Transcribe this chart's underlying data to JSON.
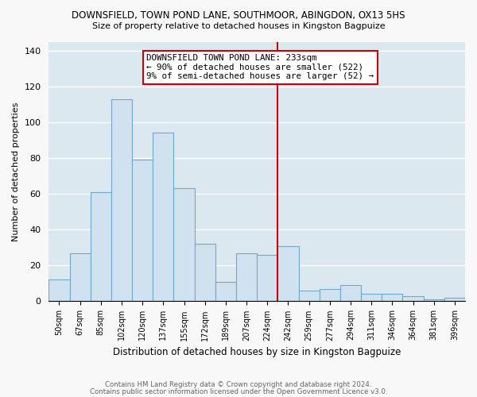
{
  "title1": "DOWNSFIELD, TOWN POND LANE, SOUTHMOOR, ABINGDON, OX13 5HS",
  "title2": "Size of property relative to detached houses in Kingston Bagpuize",
  "xlabel": "Distribution of detached houses by size in Kingston Bagpuize",
  "ylabel": "Number of detached properties",
  "categories": [
    "50sqm",
    "67sqm",
    "85sqm",
    "102sqm",
    "120sqm",
    "137sqm",
    "155sqm",
    "172sqm",
    "189sqm",
    "207sqm",
    "224sqm",
    "242sqm",
    "259sqm",
    "277sqm",
    "294sqm",
    "311sqm",
    "346sqm",
    "364sqm",
    "381sqm",
    "399sqm"
  ],
  "values": [
    12,
    27,
    61,
    113,
    79,
    94,
    63,
    32,
    11,
    27,
    26,
    31,
    6,
    7,
    9,
    4,
    4,
    3,
    1,
    2
  ],
  "bar_color": "#d0e2f0",
  "bar_edge_color": "#6fa8c8",
  "vline_color": "#cc0000",
  "annotation_text": "DOWNSFIELD TOWN POND LANE: 233sqm\n← 90% of detached houses are smaller (522)\n9% of semi-detached houses are larger (52) →",
  "annotation_box_color": "#ffffff",
  "annotation_box_edge": "#cc0000",
  "ylim": [
    0,
    145
  ],
  "yticks": [
    0,
    20,
    40,
    60,
    80,
    100,
    120,
    140
  ],
  "background_color": "#dce8f0",
  "fig_background": "#f8f8f8",
  "footnote1": "Contains HM Land Registry data © Crown copyright and database right 2024.",
  "footnote2": "Contains public sector information licensed under the Open Government Licence v3.0."
}
